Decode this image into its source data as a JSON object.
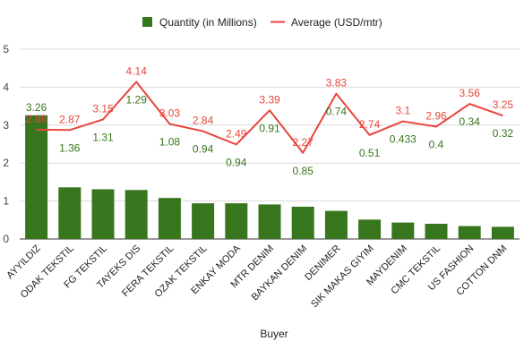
{
  "chart_data": {
    "type": "bar",
    "xlabel": "Buyer",
    "ylabel": "",
    "ylim": [
      0,
      5
    ],
    "yticks": [
      0,
      1,
      2,
      3,
      4,
      5
    ],
    "grid": true,
    "legend_position": "top",
    "categories": [
      "AYYILDIZ",
      "ODAK TEKSTIL",
      "FG TEKSTIL",
      "TAYEKS DIS",
      "FERA TEKSTIL",
      "OZAK TEKSTIL",
      "ENKAY MODA",
      "MTR DENIM",
      "BAYKAN DENIM",
      "DENIMER",
      "SIK MAKAS GIYIM",
      "MAYDENIM",
      "CMC TEKSTIL",
      "US FASHION",
      "COTTON DNM"
    ],
    "series": [
      {
        "name": "Quantity (in Millions)",
        "type": "bar",
        "color": "#38761d",
        "values": [
          3.26,
          1.36,
          1.31,
          1.29,
          1.08,
          0.94,
          0.94,
          0.91,
          0.85,
          0.74,
          0.51,
          0.433,
          0.4,
          0.34,
          0.32
        ]
      },
      {
        "name": "Average (USD/mtr)",
        "type": "line",
        "color": "#e8453c",
        "values": [
          2.88,
          2.87,
          3.15,
          4.14,
          3.03,
          2.84,
          2.49,
          3.39,
          2.27,
          3.83,
          2.74,
          3.1,
          2.96,
          3.56,
          3.25
        ]
      }
    ]
  }
}
